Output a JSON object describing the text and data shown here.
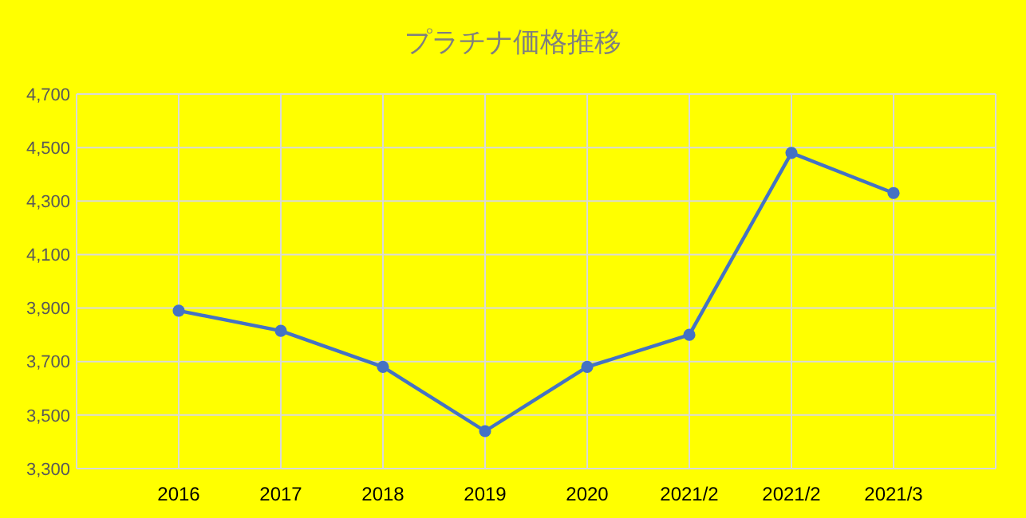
{
  "chart_data": {
    "type": "line",
    "title": "プラチナ価格推移",
    "categories": [
      null,
      "2016",
      "2017",
      "2018",
      "2019",
      "2020",
      "2021/2",
      "2021/2",
      "2021/3",
      null
    ],
    "series": [
      {
        "color": "#4472c4",
        "values": [
          null,
          3890,
          3815,
          3680,
          3440,
          3680,
          3800,
          4480,
          4330,
          null
        ]
      }
    ],
    "ylim": [
      3300,
      4700
    ],
    "yticks": [
      {
        "value": 3300,
        "label": "3,300"
      },
      {
        "value": 3500,
        "label": "3,500"
      },
      {
        "value": 3700,
        "label": "3,700"
      },
      {
        "value": 3900,
        "label": "3,900"
      },
      {
        "value": 4100,
        "label": "4,100"
      },
      {
        "value": 4300,
        "label": "4,300"
      },
      {
        "value": 4500,
        "label": "4,500"
      },
      {
        "value": 4700,
        "label": "4,700"
      }
    ],
    "grid": true,
    "marker": "circle"
  }
}
